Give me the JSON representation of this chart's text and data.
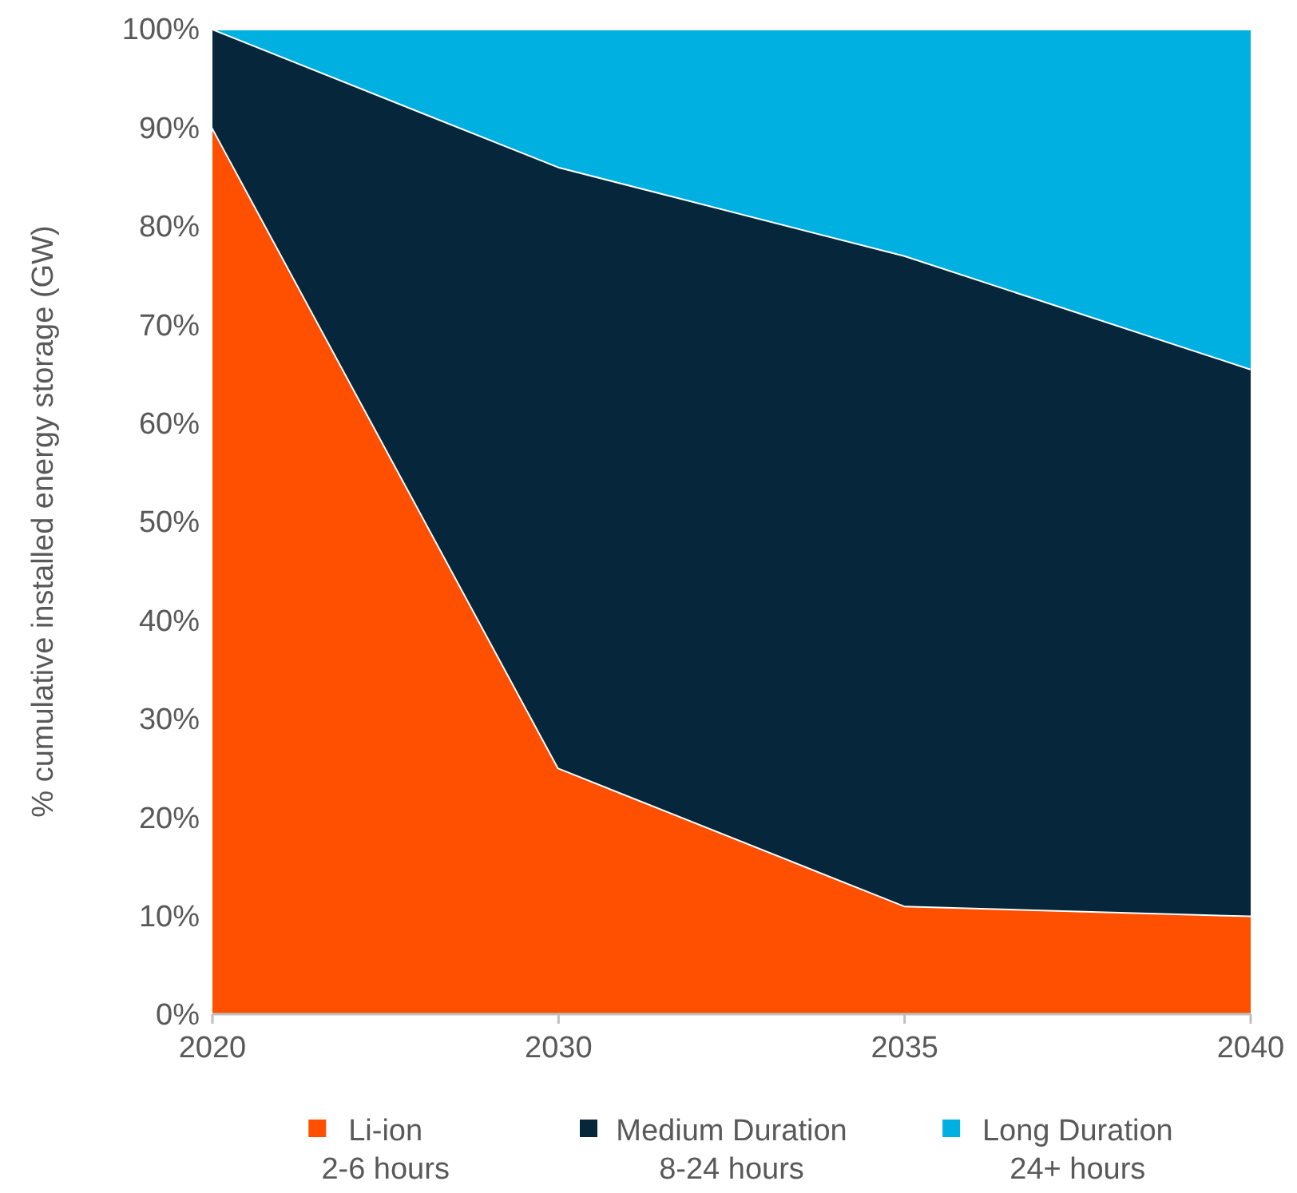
{
  "chart_data": {
    "type": "area",
    "stacked": true,
    "ylabel": "% cumulative installed energy storage (GW)",
    "categories": [
      "2020",
      "2030",
      "2035",
      "2040"
    ],
    "series": [
      {
        "name": "Li-ion\n2-6 hours",
        "color": "#ff4f00",
        "values": [
          90,
          25,
          11,
          10
        ]
      },
      {
        "name": "Medium Duration\n8-24 hours",
        "color": "#05263b",
        "values": [
          10,
          61,
          66,
          55.5
        ]
      },
      {
        "name": "Long Duration\n24+ hours",
        "color": "#00b0e0",
        "values": [
          0,
          14,
          23,
          34.5
        ]
      }
    ],
    "ylim": [
      0,
      100
    ],
    "yticks": [
      {
        "value": 0,
        "label": "0%"
      },
      {
        "value": 10,
        "label": "10%"
      },
      {
        "value": 20,
        "label": "20%"
      },
      {
        "value": 30,
        "label": "30%"
      },
      {
        "value": 40,
        "label": "40%"
      },
      {
        "value": 50,
        "label": "50%"
      },
      {
        "value": 60,
        "label": "60%"
      },
      {
        "value": 70,
        "label": "70%"
      },
      {
        "value": 80,
        "label": "80%"
      },
      {
        "value": 90,
        "label": "90%"
      },
      {
        "value": 100,
        "label": "100%"
      }
    ],
    "legend": "bottom"
  }
}
